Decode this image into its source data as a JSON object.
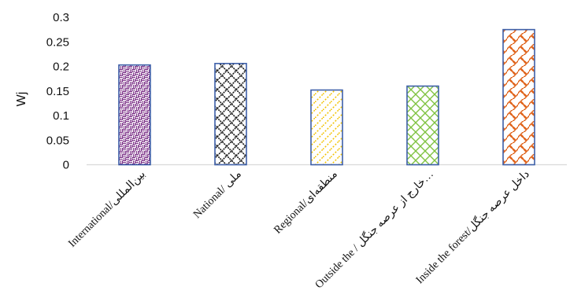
{
  "chart_data": {
    "type": "bar",
    "title": "",
    "xlabel": "",
    "ylabel": "Wj",
    "ylim": [
      0,
      0.3
    ],
    "yticks": [
      "0",
      "0.05",
      "0.1",
      "0.15",
      "0.2",
      "0.25",
      "0.3"
    ],
    "grid": false,
    "legend": "none",
    "categories": [
      "International/بین‌المللی",
      "National/ ملی",
      "Regional/منطقه‌ای",
      "Outside the / خارج از عرصه جنگل…",
      "Inside the forest/داخل عرصه جنگل"
    ],
    "values": [
      0.203,
      0.206,
      0.152,
      0.16,
      0.275
    ],
    "bar_colors": [
      "#7a2e86",
      "#1a1a1a",
      "#f2c200",
      "#7fc241",
      "#e0641c"
    ],
    "bar_border_color": "#3d5fa8",
    "axis_color": "#d9d9d9"
  }
}
